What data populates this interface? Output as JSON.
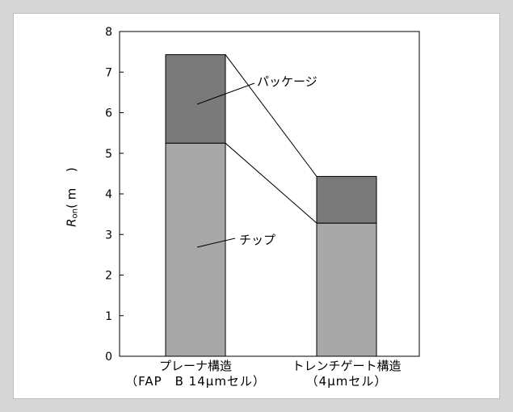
{
  "chart_data": {
    "type": "bar",
    "stacked": true,
    "categories": [
      {
        "name": "プレーナ構造",
        "sub": "（FAP　B 14µmセル）"
      },
      {
        "name": "トレンチゲート構造",
        "sub": "（4µmセル）"
      }
    ],
    "series": [
      {
        "name": "チップ",
        "values": [
          5.25,
          3.28
        ],
        "color": "#a8a8a8"
      },
      {
        "name": "パッケージ",
        "values": [
          2.18,
          1.15
        ],
        "color": "#7a7a7a"
      }
    ],
    "ylabel_symbol": "R",
    "ylabel_sub": "on",
    "ylabel_unit": "( m　 )",
    "ylim": [
      0,
      8
    ],
    "yticks": [
      "0",
      "1",
      "2",
      "3",
      "4",
      "5",
      "6",
      "7",
      "8"
    ],
    "grid": false
  }
}
